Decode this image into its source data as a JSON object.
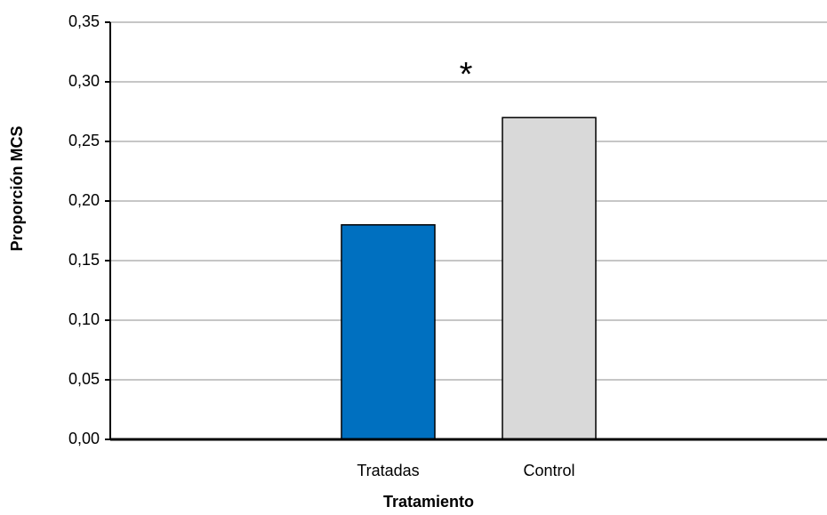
{
  "chart_data": {
    "type": "bar",
    "x_label": "Tratamiento",
    "y_label": "Proporción MCS",
    "categories": [
      "Tratadas",
      "Control"
    ],
    "values": [
      0.18,
      0.27
    ],
    "colors": [
      "#0070c0",
      "#d9d9d9"
    ],
    "annotations": [
      "*"
    ],
    "ylim": [
      0,
      0.35
    ],
    "yticks": [
      {
        "value": 0,
        "label": "0,00"
      },
      {
        "value": 0.05,
        "label": "0,05"
      },
      {
        "value": 0.1,
        "label": "0,10"
      },
      {
        "value": 0.15,
        "label": "0,15"
      },
      {
        "value": 0.2,
        "label": "0,20"
      },
      {
        "value": 0.25,
        "label": "0,25"
      },
      {
        "value": 0.3,
        "label": "0,30"
      },
      {
        "value": 0.35,
        "label": "0,35"
      }
    ],
    "grid": true
  }
}
